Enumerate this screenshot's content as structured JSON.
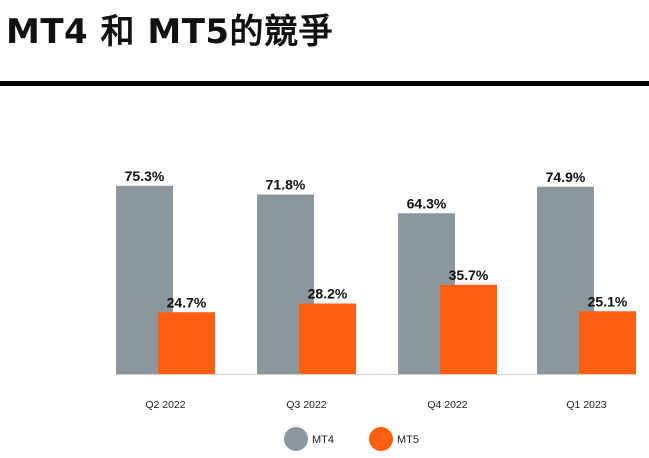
{
  "header": {
    "title": "MT4 和 MT5的競爭"
  },
  "chart_data": {
    "type": "bar",
    "title": "MT4 和 MT5的競爭",
    "categories": [
      "Q2 2022",
      "Q3 2022",
      "Q4 2022",
      "Q1 2023"
    ],
    "series": [
      {
        "name": "MT4",
        "color": "#8a979d",
        "values": [
          75.3,
          71.8,
          64.3,
          74.9
        ],
        "labels": [
          "75.3%",
          "71.8%",
          "64.3%",
          "74.9%"
        ]
      },
      {
        "name": "MT5",
        "color": "#ff5f0f",
        "values": [
          24.7,
          28.2,
          35.7,
          25.1
        ],
        "labels": [
          "24.7%",
          "28.2%",
          "35.7%",
          "25.1%"
        ]
      }
    ],
    "ylim": [
      0,
      100
    ],
    "value_unit": "%",
    "grid": false,
    "legend_position": "bottom-center",
    "xlabel": "",
    "ylabel": ""
  }
}
